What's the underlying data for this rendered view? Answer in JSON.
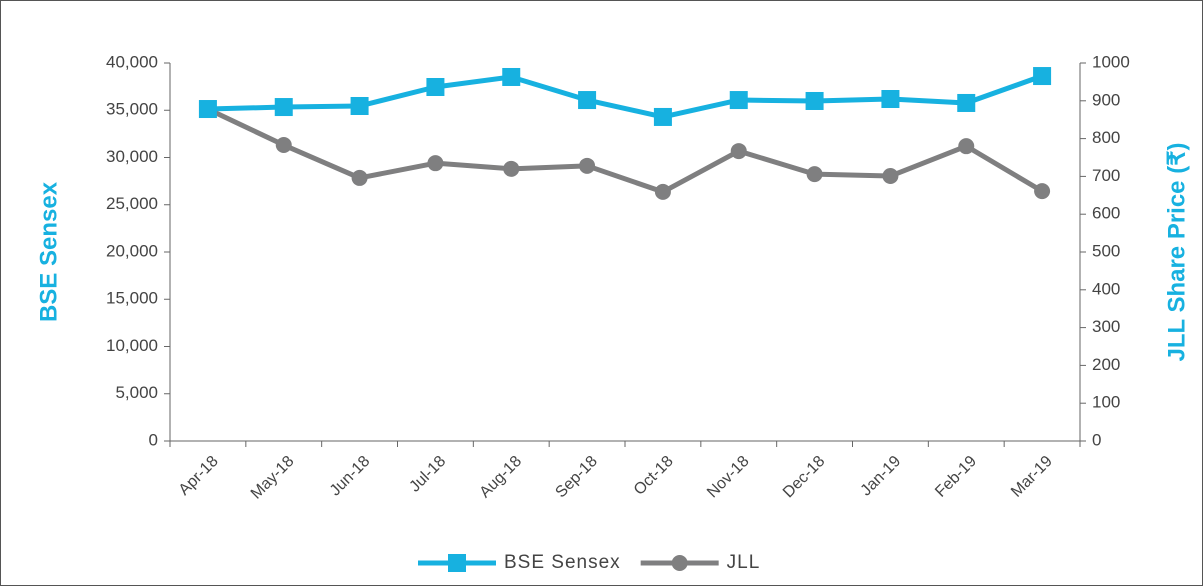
{
  "chart_data": {
    "type": "line",
    "categories": [
      "Apr-18",
      "May-18",
      "Jun-18",
      "Jul-18",
      "Aug-18",
      "Sep-18",
      "Oct-18",
      "Nov-18",
      "Dec-18",
      "Jan-19",
      "Feb-19",
      "Mar-19"
    ],
    "ylabel": "BSE Sensex",
    "y2label": "JLL Share Price (₹)",
    "ylim": [
      0,
      40000
    ],
    "yticks": [
      0,
      {
        "value": 5000,
        "label": "5,000"
      },
      {
        "value": 10000,
        "label": "10,000"
      },
      {
        "value": 15000,
        "label": "15,000"
      },
      {
        "value": 20000,
        "label": "20,000"
      },
      {
        "value": 25000,
        "label": "25,000"
      },
      {
        "value": 30000,
        "label": "30,000"
      },
      {
        "value": 35000,
        "label": "35,000"
      },
      {
        "value": 40000,
        "label": "40,000"
      }
    ],
    "y2lim": [
      0,
      1000
    ],
    "y2ticks": [
      0,
      100,
      200,
      300,
      400,
      500,
      600,
      700,
      800,
      900,
      1000
    ],
    "series": [
      {
        "name": "BSE Sensex",
        "color": "#17b1e0",
        "marker": "square",
        "values": [
          35130,
          35340,
          35450,
          37460,
          38520,
          36080,
          34290,
          36080,
          35980,
          36190,
          35770,
          38620
        ]
      },
      {
        "name": "JLL",
        "color": "#7f7f80",
        "marker": "circle",
        "axis": "y2",
        "values": [
          878,
          783,
          696,
          735,
          720,
          728,
          659,
          767,
          706,
          701,
          780,
          661
        ]
      }
    ],
    "legend": "bottom"
  }
}
